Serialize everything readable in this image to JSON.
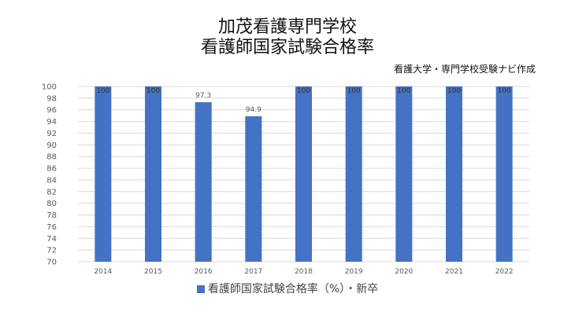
{
  "title_line1": "加茂看護専門学校",
  "title_line2": "看護師国家試験合格率",
  "source": "看護大学・専門学校受験ナビ作成",
  "colors": {
    "bar": "#4472C4",
    "grid": "#d9d9d9",
    "axis_text": "#595959"
  },
  "chart_data": {
    "type": "bar",
    "categories": [
      "2014",
      "2015",
      "2016",
      "2017",
      "2018",
      "2019",
      "2020",
      "2021",
      "2022"
    ],
    "series": [
      {
        "name": "看護師国家試験合格率（%）・新卒",
        "values": [
          100,
          100,
          97.3,
          94.9,
          100,
          100,
          100,
          100,
          100
        ]
      }
    ],
    "data_labels": [
      "100",
      "100",
      "97.3",
      "94.9",
      "100",
      "100",
      "100",
      "100",
      "100"
    ],
    "ylim": [
      70,
      100
    ],
    "yticks": [
      "70",
      "72",
      "74",
      "76",
      "78",
      "80",
      "82",
      "84",
      "86",
      "88",
      "90",
      "92",
      "94",
      "96",
      "98",
      "100"
    ],
    "grid": true,
    "legend_position": "bottom"
  }
}
